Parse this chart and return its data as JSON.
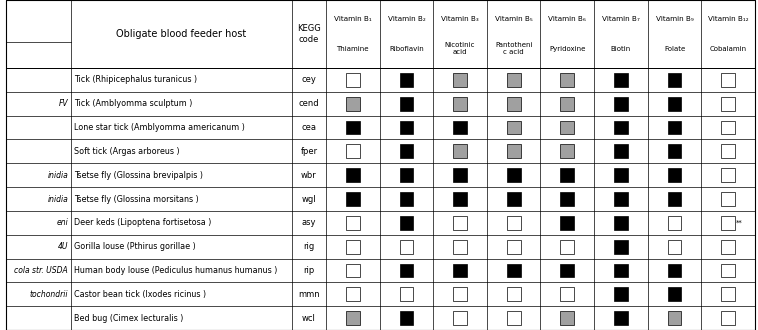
{
  "col1_labels": [
    "",
    "FV",
    "",
    "",
    "inidia",
    "inidia",
    "eni",
    "4U",
    "cola str. USDA",
    "tochondrii",
    ""
  ],
  "host_labels": [
    "Tick (Rhipicephalus turanicus )",
    "Tick (Amblyomma sculptum )",
    "Lone star tick (Amblyomma americanum )",
    "Soft tick (Argas arboreus )",
    "Tsetse fly (Glossina brevipalpis )",
    "Tsetse fly (Glossina morsitans )",
    "Deer keds (Lipoptena fortisetosa )",
    "Gorilla louse (Pthirus gorillae )",
    "Human body louse (Pediculus humanus humanus )",
    "Castor bean tick (Ixodes ricinus )",
    "Bed bug (Cimex lecturalis )"
  ],
  "kegg_codes": [
    "cey",
    "cend",
    "cea",
    "fper",
    "wbr",
    "wgl",
    "asy",
    "rig",
    "rip",
    "mmn",
    "wcl"
  ],
  "vitamin_top": [
    "Vitamin B₁",
    "Vitamin B₂",
    "Vitamin B₃",
    "Vitamin B₅",
    "Vitamin B₆",
    "Vitamin B₇",
    "Vitamin B₉",
    "Vitamin B₁₂"
  ],
  "vitamin_sub": [
    "Thiamine",
    "Riboflavin",
    "Nicotinic\nacid",
    "Pantotheni\nc acid",
    "Pyridoxine",
    "Biotin",
    "Folate",
    "Cobalamin"
  ],
  "cell_data": [
    [
      0,
      2,
      1,
      1,
      1,
      2,
      2,
      0
    ],
    [
      1,
      2,
      1,
      1,
      1,
      2,
      2,
      0
    ],
    [
      2,
      2,
      2,
      1,
      1,
      2,
      2,
      0
    ],
    [
      0,
      2,
      1,
      1,
      1,
      2,
      2,
      0
    ],
    [
      2,
      2,
      2,
      2,
      2,
      2,
      2,
      0
    ],
    [
      2,
      2,
      2,
      2,
      2,
      2,
      2,
      0
    ],
    [
      0,
      2,
      0,
      0,
      2,
      2,
      0,
      3
    ],
    [
      0,
      0,
      0,
      0,
      0,
      2,
      0,
      0
    ],
    [
      0,
      2,
      2,
      2,
      2,
      2,
      2,
      0
    ],
    [
      0,
      0,
      0,
      0,
      0,
      2,
      2,
      0
    ],
    [
      1,
      2,
      0,
      0,
      1,
      2,
      1,
      0
    ]
  ],
  "color_map": {
    "0": "white",
    "1": "#a0a0a0",
    "2": "black",
    "3": "white"
  },
  "figw": 7.58,
  "figh": 3.3,
  "dpi": 100
}
